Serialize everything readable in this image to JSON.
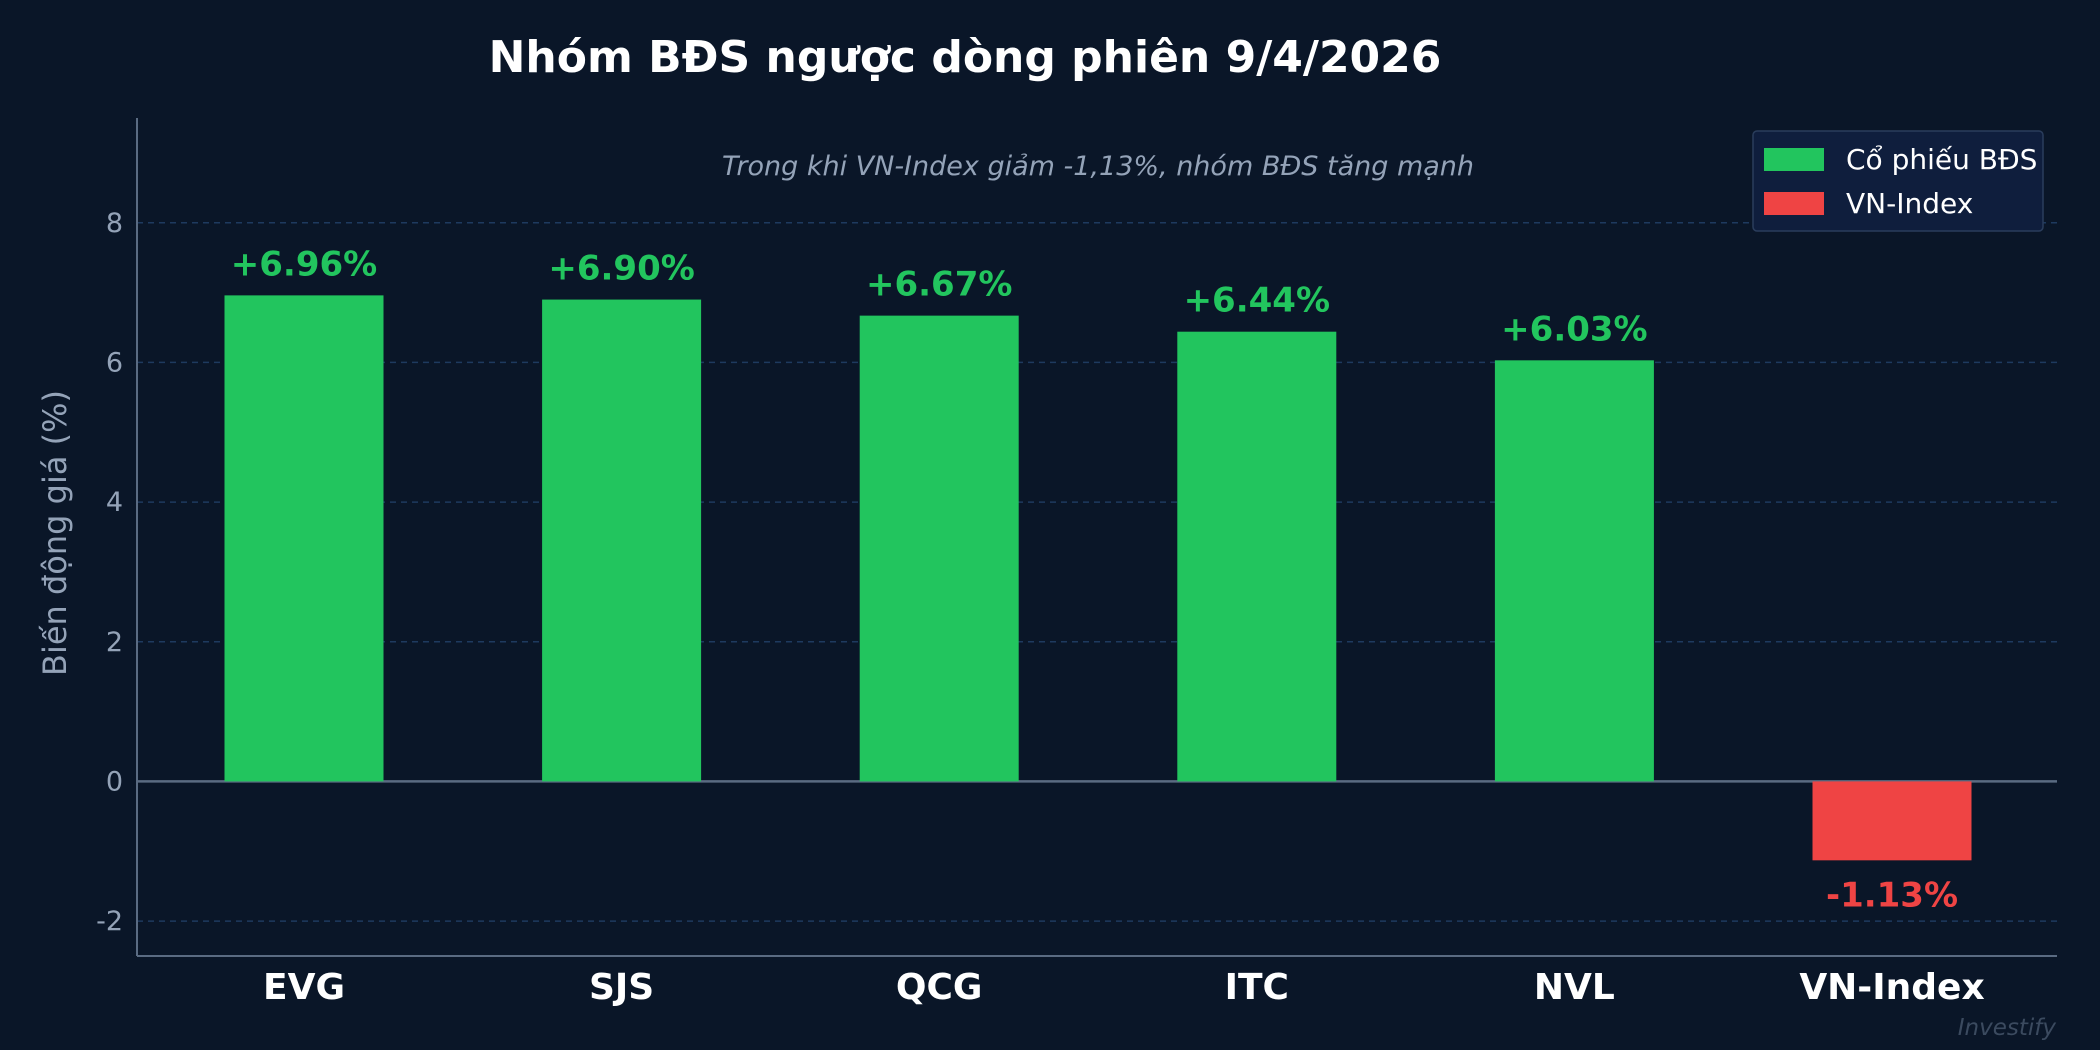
{
  "chart_data": {
    "type": "bar",
    "title": "Nhóm BĐS ngược dòng phiên 9/4/2026",
    "subtitle": "Trong khi VN-Index giảm -1,13%, nhóm BĐS tăng mạnh",
    "ylabel": "Biến động giá (%)",
    "xlabel": "",
    "ylim": [
      -2.5,
      9.5
    ],
    "yticks": [
      {
        "value": -2,
        "label": "-2"
      },
      {
        "value": 0,
        "label": "0"
      },
      {
        "value": 2,
        "label": "2"
      },
      {
        "value": 4,
        "label": "4"
      },
      {
        "value": 6,
        "label": "6"
      },
      {
        "value": 8,
        "label": "8"
      }
    ],
    "grid": true,
    "categories": [
      "EVG",
      "SJS",
      "QCG",
      "ITC",
      "NVL",
      "VN-Index"
    ],
    "values": [
      6.96,
      6.9,
      6.67,
      6.44,
      6.03,
      -1.13
    ],
    "data_labels": [
      "+6.96%",
      "+6.90%",
      "+6.67%",
      "+6.44%",
      "+6.03%",
      "-1.13%"
    ],
    "bar_groups": [
      "stock",
      "stock",
      "stock",
      "stock",
      "stock",
      "index"
    ],
    "legend": {
      "placement": "top-right",
      "items": [
        {
          "label": "Cổ phiếu BĐS",
          "color": "#22c55e"
        },
        {
          "label": "VN-Index",
          "color": "#ef4444"
        }
      ]
    },
    "colors": {
      "stock": "#22c55e",
      "index": "#ef4444",
      "background": "#0a1628",
      "title": "#ffffff",
      "subtitle": "#94a3b8",
      "axis_text": "#94a3b8",
      "xtick": "#ffffff",
      "grid": "#1e3a5f",
      "zero_line": "#5a6b82",
      "watermark": "#3b4a5f",
      "legend_bg": "#0f1e3d",
      "legend_border": "#2a3d5c"
    },
    "watermark": "Investify"
  }
}
